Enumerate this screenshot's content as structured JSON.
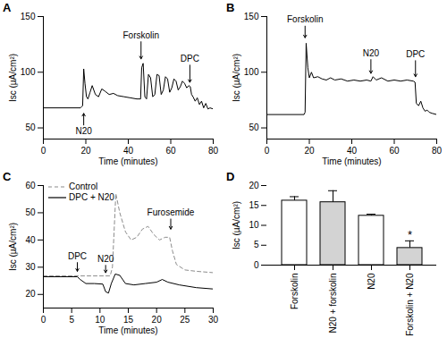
{
  "chart_data": [
    {
      "type": "line",
      "title": "A",
      "x_label": "Time (minutes)",
      "y_label": "Isc (µA/cm²)",
      "xlim": [
        0,
        80
      ],
      "xticks": [
        0,
        20,
        40,
        60,
        80
      ],
      "ylim": [
        40,
        150
      ],
      "yticks": [
        50,
        100,
        150
      ],
      "series": [
        {
          "color": "#000000",
          "line_style": "solid",
          "x": [
            0,
            17.5,
            18.5,
            19,
            19.6,
            20.3,
            21,
            22,
            23,
            24.5,
            26,
            27.5,
            29,
            31,
            33,
            35,
            38,
            41,
            44,
            45.8,
            46.3,
            47,
            47.8,
            48.6,
            49.5,
            50.5,
            51.5,
            52.5,
            53.5,
            54.5,
            55.5,
            56.5,
            57.5,
            58.5,
            59.5,
            60.5,
            61.5,
            62.5,
            63.5,
            64.5,
            65.5,
            66.5,
            67.5,
            68.5,
            69.2,
            69.8,
            70.5,
            71.5,
            72.5,
            73.5,
            74.5,
            75.5,
            76.5,
            77.5,
            78.5,
            80
          ],
          "values": [
            68,
            68,
            70,
            103,
            90,
            78,
            76,
            82,
            88,
            80,
            78,
            85,
            83,
            80,
            81,
            79,
            78,
            77,
            76,
            76,
            104,
            108,
            78,
            76,
            98,
            95,
            78,
            80,
            98,
            97,
            80,
            84,
            96,
            94,
            82,
            86,
            94,
            92,
            84,
            87,
            92,
            90,
            86,
            88,
            87,
            80,
            78,
            74,
            77,
            71,
            74,
            68,
            72,
            67,
            68,
            67
          ]
        }
      ],
      "annotations": [
        {
          "text": "N20",
          "x": 19,
          "y": 63,
          "y_text": 47
        },
        {
          "text": "Forskolin",
          "x": 46,
          "y": 112,
          "y_text": 133
        },
        {
          "text": "DPC",
          "x": 69,
          "y": 91,
          "y_text": 112
        }
      ]
    },
    {
      "type": "line",
      "title": "B",
      "x_label": "Time (minutes)",
      "y_label": "Isc (µA/cm²)",
      "xlim": [
        0,
        80
      ],
      "xticks": [
        0,
        20,
        40,
        60,
        80
      ],
      "ylim": [
        40,
        150
      ],
      "yticks": [
        50,
        100,
        150
      ],
      "series": [
        {
          "color": "#000000",
          "line_style": "solid",
          "x": [
            0,
            17.5,
            18,
            18.5,
            19.3,
            20,
            21,
            22,
            24,
            26,
            28,
            30,
            32,
            35,
            38,
            41,
            44,
            47,
            49,
            50,
            51.5,
            54,
            57,
            60,
            63,
            66,
            69,
            69.8,
            70.4,
            71.5,
            72.5,
            73.5,
            74.5,
            75.5,
            76.5,
            78,
            80
          ],
          "values": [
            62,
            62,
            64,
            126,
            104,
            95,
            100,
            95,
            96,
            94,
            93,
            95,
            93,
            94,
            92,
            93,
            92,
            93,
            92,
            96,
            93,
            95,
            92,
            93,
            92,
            93,
            92,
            91,
            72,
            70,
            74,
            68,
            65,
            66,
            64,
            63,
            62
          ]
        }
      ],
      "annotations": [
        {
          "text": "Forskolin",
          "x": 18,
          "y": 131,
          "y_text": 147
        },
        {
          "text": "N20",
          "x": 49,
          "y": 99,
          "y_text": 117
        },
        {
          "text": "DPC",
          "x": 70,
          "y": 96,
          "y_text": 116
        }
      ]
    },
    {
      "type": "line",
      "title": "C",
      "x_label": "Time (minutes)",
      "y_label": "Isc (µA/cm²)",
      "xlim": [
        0,
        30
      ],
      "xticks": [
        0,
        5,
        10,
        15,
        20,
        25,
        30
      ],
      "ylim": [
        15,
        60
      ],
      "yticks": [
        20,
        30,
        40,
        50,
        60
      ],
      "legend": "top-left",
      "series": [
        {
          "name": "Control",
          "color": "#8c8c8c",
          "line_style": "dashed",
          "x": [
            0,
            11.8,
            12.2,
            12.8,
            13.5,
            14.5,
            15.5,
            16.5,
            17.5,
            18.5,
            19.5,
            20.5,
            21.5,
            22.3,
            22.8,
            23.5,
            25,
            27,
            30
          ],
          "values": [
            26.8,
            26.8,
            30,
            57,
            50,
            43,
            40,
            41,
            44,
            45,
            42,
            40,
            41,
            41,
            36,
            31,
            29,
            28.5,
            28
          ]
        },
        {
          "name": "DPC + N20",
          "color": "#000000",
          "line_style": "solid",
          "x": [
            0,
            6,
            6.5,
            7.5,
            9,
            10.5,
            11,
            11.5,
            12,
            12.7,
            13.5,
            14.5,
            16,
            18,
            20,
            21,
            22,
            24,
            27,
            30
          ],
          "values": [
            26.5,
            26.5,
            25.5,
            24,
            24,
            23.8,
            21,
            20.5,
            24,
            27.5,
            27,
            24,
            23.5,
            24,
            24.5,
            25.5,
            24.5,
            23.5,
            22.5,
            22
          ]
        }
      ],
      "annotations": [
        {
          "text": "DPC",
          "x": 6,
          "y": 28.5,
          "y_text": 34
        },
        {
          "text": "N20",
          "x": 11,
          "y": 28,
          "y_text": 33
        },
        {
          "text": "Furosemide",
          "x": 22.5,
          "y": 44,
          "y_text": 50
        }
      ]
    },
    {
      "type": "bar",
      "title": "D",
      "y_label": "Isc (µA/cm²)",
      "categories": [
        "Forskolin",
        "N20 + forskolin",
        "N20",
        "Forskolin + N20"
      ],
      "values": [
        16.2,
        15.8,
        12.4,
        4.3
      ],
      "errors": [
        1.0,
        2.9,
        0.4,
        1.8
      ],
      "colors": [
        "#ffffff",
        "#d3d3d3",
        "#ffffff",
        "#d3d3d3"
      ],
      "ylim": [
        0,
        20
      ],
      "yticks": [
        0,
        5,
        10,
        15,
        20
      ],
      "annotations": [
        {
          "text": "*",
          "category": "Forskolin + N20"
        }
      ]
    }
  ]
}
